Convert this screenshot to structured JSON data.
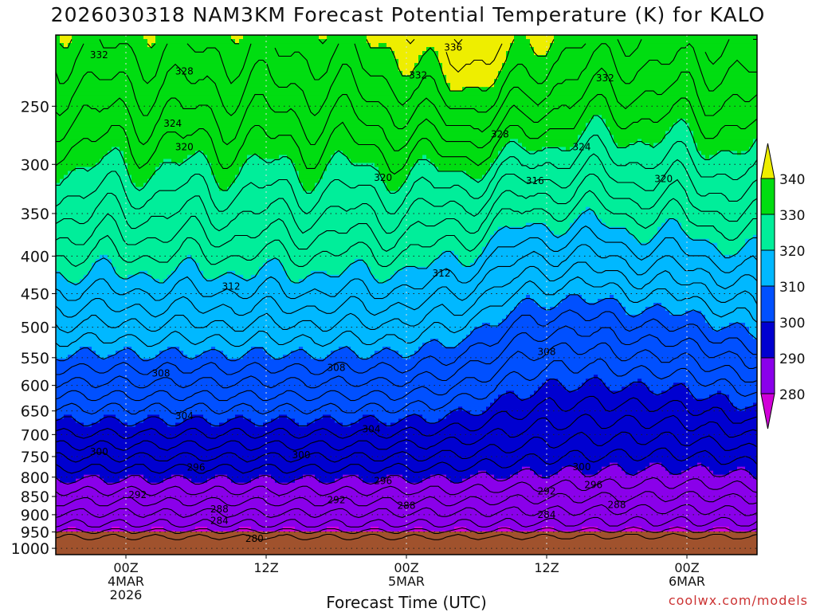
{
  "chart_data": {
    "type": "heatmap",
    "title": "2026030318 NAM3KM Forecast Potential Temperature (K) for KALO",
    "xlabel": "Forecast Time (UTC)",
    "ylabel": "",
    "y_scale": "log",
    "y_inverted": true,
    "y_range_hpa": [
      1020,
      200
    ],
    "y_ticks": [
      250,
      300,
      350,
      400,
      450,
      500,
      550,
      600,
      650,
      700,
      750,
      800,
      850,
      900,
      950,
      1000
    ],
    "x_range_hours": [
      -6,
      54
    ],
    "x_ticks": [
      {
        "hour": 0,
        "lines": [
          "00Z",
          "4MAR",
          "2026"
        ]
      },
      {
        "hour": 12,
        "lines": [
          "12Z"
        ]
      },
      {
        "hour": 24,
        "lines": [
          "00Z",
          "5MAR"
        ]
      },
      {
        "hour": 36,
        "lines": [
          "12Z"
        ]
      },
      {
        "hour": 48,
        "lines": [
          "00Z",
          "6MAR"
        ]
      }
    ],
    "grid": true,
    "colorbar": {
      "levels": [
        280,
        290,
        300,
        310,
        320,
        330,
        340
      ],
      "colors": [
        "#d000d8",
        "#8a00ea",
        "#0000d0",
        "#0050ff",
        "#00b8ff",
        "#00ee9a",
        "#00dd11",
        "#eeee00"
      ],
      "labels": [
        "280",
        "290",
        "300",
        "310",
        "320",
        "330",
        "340"
      ]
    },
    "contour_labels": [
      {
        "text": "332",
        "hour": -2.3,
        "p": 213
      },
      {
        "text": "328",
        "hour": 5,
        "p": 224
      },
      {
        "text": "324",
        "hour": 4,
        "p": 264
      },
      {
        "text": "320",
        "hour": 5,
        "p": 284
      },
      {
        "text": "312",
        "hour": 9,
        "p": 440
      },
      {
        "text": "308",
        "hour": 3,
        "p": 578
      },
      {
        "text": "304",
        "hour": 5,
        "p": 660
      },
      {
        "text": "300",
        "hour": -2.3,
        "p": 739
      },
      {
        "text": "296",
        "hour": 6,
        "p": 776
      },
      {
        "text": "292",
        "hour": 1,
        "p": 846
      },
      {
        "text": "288",
        "hour": 8,
        "p": 885
      },
      {
        "text": "284",
        "hour": 8,
        "p": 917
      },
      {
        "text": "280",
        "hour": 11,
        "p": 970
      },
      {
        "text": "336",
        "hour": 28,
        "p": 208
      },
      {
        "text": "332",
        "hour": 25,
        "p": 227
      },
      {
        "text": "328",
        "hour": 32,
        "p": 273
      },
      {
        "text": "320",
        "hour": 22,
        "p": 313
      },
      {
        "text": "312",
        "hour": 27,
        "p": 422
      },
      {
        "text": "308",
        "hour": 18,
        "p": 568
      },
      {
        "text": "304",
        "hour": 21,
        "p": 688
      },
      {
        "text": "300",
        "hour": 15,
        "p": 746
      },
      {
        "text": "296",
        "hour": 22,
        "p": 810
      },
      {
        "text": "292",
        "hour": 18,
        "p": 860
      },
      {
        "text": "288",
        "hour": 24,
        "p": 875
      },
      {
        "text": "316",
        "hour": 35,
        "p": 316
      },
      {
        "text": "308",
        "hour": 36,
        "p": 540
      },
      {
        "text": "300",
        "hour": 39,
        "p": 775
      },
      {
        "text": "296",
        "hour": 40,
        "p": 820
      },
      {
        "text": "292",
        "hour": 36,
        "p": 836
      },
      {
        "text": "284",
        "hour": 36,
        "p": 900
      },
      {
        "text": "288",
        "hour": 42,
        "p": 872
      },
      {
        "text": "324",
        "hour": 39,
        "p": 284
      },
      {
        "text": "332",
        "hour": 41,
        "p": 229
      },
      {
        "text": "320",
        "hour": 46,
        "p": 314
      }
    ]
  },
  "credit": "coolwx.com/models"
}
